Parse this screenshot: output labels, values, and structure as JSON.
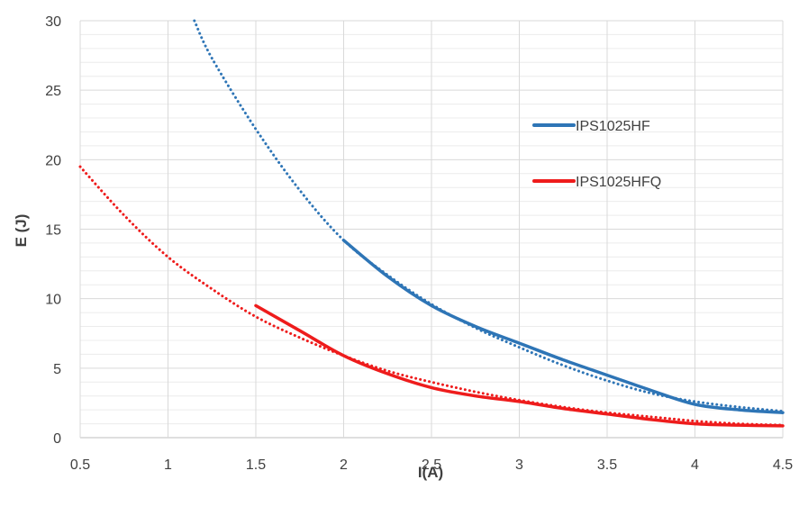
{
  "chart_data": {
    "type": "line",
    "title": "",
    "xlabel": "I(A)",
    "ylabel": "E (J)",
    "xlim": [
      0.5,
      4.5
    ],
    "ylim": [
      0,
      30
    ],
    "x_ticks": [
      0.5,
      1,
      1.5,
      2,
      2.5,
      3,
      3.5,
      4,
      4.5
    ],
    "x_tick_labels": [
      "0.5",
      "1",
      "1.5",
      "2",
      "2.5",
      "3",
      "3.5",
      "4",
      "4.5"
    ],
    "y_ticks": [
      0,
      5,
      10,
      15,
      20,
      25,
      30
    ],
    "y_tick_labels": [
      "0",
      "5",
      "10",
      "15",
      "20",
      "25",
      "30"
    ],
    "grid": true,
    "legend_position": "right",
    "series": [
      {
        "name": "IPS1025HF",
        "color": "#2E75B6",
        "style": "solid",
        "x": [
          2.0,
          2.25,
          2.5,
          2.75,
          3.0,
          3.25,
          3.5,
          3.75,
          4.0,
          4.25,
          4.5
        ],
        "y": [
          14.2,
          11.6,
          9.5,
          8.0,
          6.8,
          5.6,
          4.5,
          3.4,
          2.4,
          2.0,
          1.8
        ]
      },
      {
        "name": "IPS1025HFQ",
        "color": "#EE1C1C",
        "style": "solid",
        "x": [
          1.5,
          1.75,
          2.0,
          2.25,
          2.5,
          2.75,
          3.0,
          3.25,
          3.5,
          3.75,
          4.0,
          4.25,
          4.5
        ],
        "y": [
          9.5,
          7.7,
          5.9,
          4.6,
          3.6,
          3.0,
          2.6,
          2.1,
          1.7,
          1.3,
          1.0,
          0.9,
          0.85
        ]
      },
      {
        "name": "",
        "color": "#2E75B6",
        "style": "dotted",
        "x": [
          1.15,
          1.25,
          1.5,
          1.75,
          2.0,
          2.25,
          2.5,
          2.75,
          3.0,
          3.25,
          3.5,
          3.75,
          4.0,
          4.25,
          4.5
        ],
        "y": [
          30.0,
          27.3,
          22.2,
          17.8,
          14.2,
          11.7,
          9.6,
          7.9,
          6.5,
          5.2,
          4.1,
          3.2,
          2.6,
          2.2,
          1.9
        ]
      },
      {
        "name": "",
        "color": "#EE1C1C",
        "style": "dotted",
        "x": [
          0.5,
          0.75,
          1.0,
          1.25,
          1.5,
          1.75,
          2.0,
          2.25,
          2.5,
          2.75,
          3.0,
          3.25,
          3.5,
          3.75,
          4.0,
          4.25,
          4.5
        ],
        "y": [
          19.5,
          16.0,
          13.0,
          10.7,
          8.7,
          7.2,
          5.9,
          4.8,
          4.0,
          3.3,
          2.7,
          2.2,
          1.8,
          1.5,
          1.2,
          1.0,
          0.9
        ]
      }
    ]
  }
}
